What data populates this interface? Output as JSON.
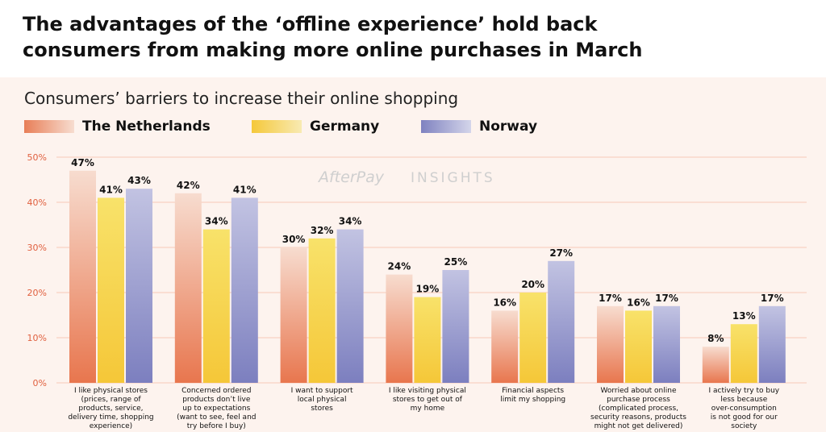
{
  "header": {
    "title_line1": "The advantages of the ‘offline experience’ hold back",
    "title_line2": "consumers from making more online purchases in March"
  },
  "brand": {
    "logo_text": "AfterPay",
    "insights_text": "INSIGHTS"
  },
  "colors": {
    "panel_background": "#fdf3ee",
    "netherlands": "#e87e57",
    "germany": "#f5d84a",
    "norway": "#8e90c7",
    "axis_tick_text": "#e0603f",
    "grid_line": "#f6c9b8"
  },
  "chart_data": {
    "type": "bar",
    "title": "Consumers’ barriers to increase their online shopping",
    "categories": [
      "I like physical stores (prices, range of products, service, delivery time, shopping experience)",
      "Concerned ordered products don’t live up to expectations (want to see, feel and try before I buy)",
      "I want to support local physical stores",
      "I like visiting physical stores to get out of my home",
      "Financial aspects limit my shopping",
      "Worried about online purchase process (complicated process, security reasons, products might not get delivered)",
      "I actively try to buy less because over-consumption is not good for our society"
    ],
    "category_lines": [
      [
        "I like physical stores",
        "(prices, range of",
        "products, service,",
        "delivery time, shopping",
        "experience)"
      ],
      [
        "Concerned ordered",
        "products don’t live",
        "up to expectations",
        "(want to see, feel and",
        "try before I buy)"
      ],
      [
        "I want to support",
        "local physical",
        "stores"
      ],
      [
        "I like visiting physical",
        "stores to get out of",
        "my home"
      ],
      [
        "Financial aspects",
        "limit my shopping"
      ],
      [
        "Worried about online",
        "purchase process",
        "(complicated process,",
        "security reasons, products",
        "might not get delivered)"
      ],
      [
        "I actively try to buy",
        "less because",
        "over-consumption",
        "is not good for our",
        "society"
      ]
    ],
    "series": [
      {
        "name": "The Netherlands",
        "values": [
          47,
          42,
          30,
          24,
          16,
          17,
          8
        ],
        "color": "#e87e57"
      },
      {
        "name": "Germany",
        "values": [
          41,
          34,
          32,
          19,
          20,
          16,
          13
        ],
        "color": "#f5d84a"
      },
      {
        "name": "Norway",
        "values": [
          43,
          41,
          34,
          25,
          27,
          17,
          17
        ],
        "color": "#8e90c7"
      }
    ],
    "value_suffix": "%",
    "y_ticks": [
      "0%",
      "10%",
      "20%",
      "30%",
      "40%",
      "50%"
    ],
    "ylim": [
      0,
      50
    ],
    "xlabel": "",
    "ylabel": "",
    "grid": true,
    "legend_position": "top-left"
  }
}
